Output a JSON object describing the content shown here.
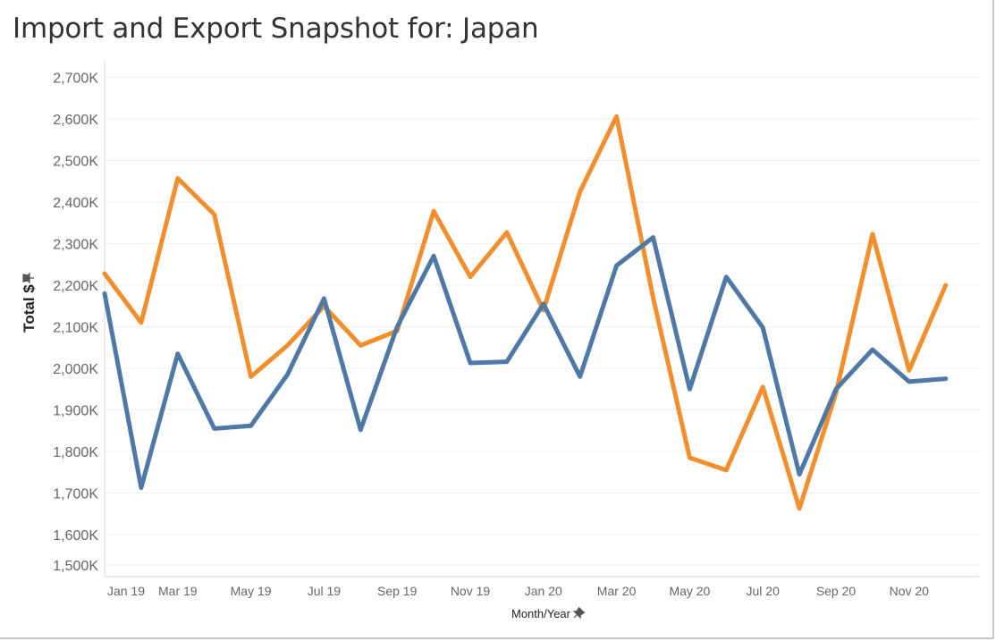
{
  "title": "Import and Export Snapshot for: Japan",
  "chart_data": {
    "type": "line",
    "xlabel": "Month/Year",
    "ylabel": "Total $",
    "ylim": [
      1450000,
      2760000
    ],
    "y_ticks": [
      {
        "value": 1500000,
        "label": "1,500K"
      },
      {
        "value": 1600000,
        "label": "1,600K"
      },
      {
        "value": 1700000,
        "label": "1,700K"
      },
      {
        "value": 1800000,
        "label": "1,800K"
      },
      {
        "value": 1900000,
        "label": "1,900K"
      },
      {
        "value": 2000000,
        "label": "2,000K"
      },
      {
        "value": 2100000,
        "label": "2,100K"
      },
      {
        "value": 2200000,
        "label": "2,200K"
      },
      {
        "value": 2300000,
        "label": "2,300K"
      },
      {
        "value": 2400000,
        "label": "2,400K"
      },
      {
        "value": 2500000,
        "label": "2,500K"
      },
      {
        "value": 2600000,
        "label": "2,600K"
      },
      {
        "value": 2700000,
        "label": "2,700K"
      }
    ],
    "x": [
      "Jan 19",
      "Feb 19",
      "Mar 19",
      "Apr 19",
      "May 19",
      "Jun 19",
      "Jul 19",
      "Aug 19",
      "Sep 19",
      "Oct 19",
      "Nov 19",
      "Dec 19",
      "Jan 20",
      "Feb 20",
      "Mar 20",
      "Apr 20",
      "May 20",
      "Jun 20",
      "Jul 20",
      "Aug 20",
      "Sep 20",
      "Oct 20",
      "Nov 20",
      "Dec 20"
    ],
    "x_tick_labels": [
      {
        "label": "Jan 19",
        "index": 0
      },
      {
        "label": "Mar 19",
        "index": 2
      },
      {
        "label": "May 19",
        "index": 4
      },
      {
        "label": "Jul 19",
        "index": 6
      },
      {
        "label": "Sep 19",
        "index": 8
      },
      {
        "label": "Nov 19",
        "index": 10
      },
      {
        "label": "Jan 20",
        "index": 12
      },
      {
        "label": "Mar 20",
        "index": 14
      },
      {
        "label": "May 20",
        "index": 16
      },
      {
        "label": "Jul 20",
        "index": 18
      },
      {
        "label": "Sep 20",
        "index": 20
      },
      {
        "label": "Nov 20",
        "index": 22
      }
    ],
    "series": [
      {
        "color": "#F28E2B",
        "values": [
          2228000,
          2110000,
          2457000,
          2370000,
          1980000,
          2055000,
          2150000,
          2055000,
          2090000,
          2378000,
          2220000,
          2327000,
          2140000,
          2425000,
          2606000,
          2170000,
          1785000,
          1755000,
          1955000,
          1663000,
          1940000,
          2323000,
          1995000,
          2200000
        ]
      },
      {
        "color": "#4E79A7",
        "values": [
          2180000,
          1713000,
          2035000,
          1855000,
          1862000,
          1985000,
          2168000,
          1852000,
          2100000,
          2270000,
          2013000,
          2016000,
          2155000,
          1980000,
          2247000,
          2315000,
          1950000,
          2220000,
          2098000,
          1745000,
          1950000,
          2045000,
          1968000,
          1975000
        ]
      }
    ],
    "grid": true,
    "legend": "none"
  }
}
